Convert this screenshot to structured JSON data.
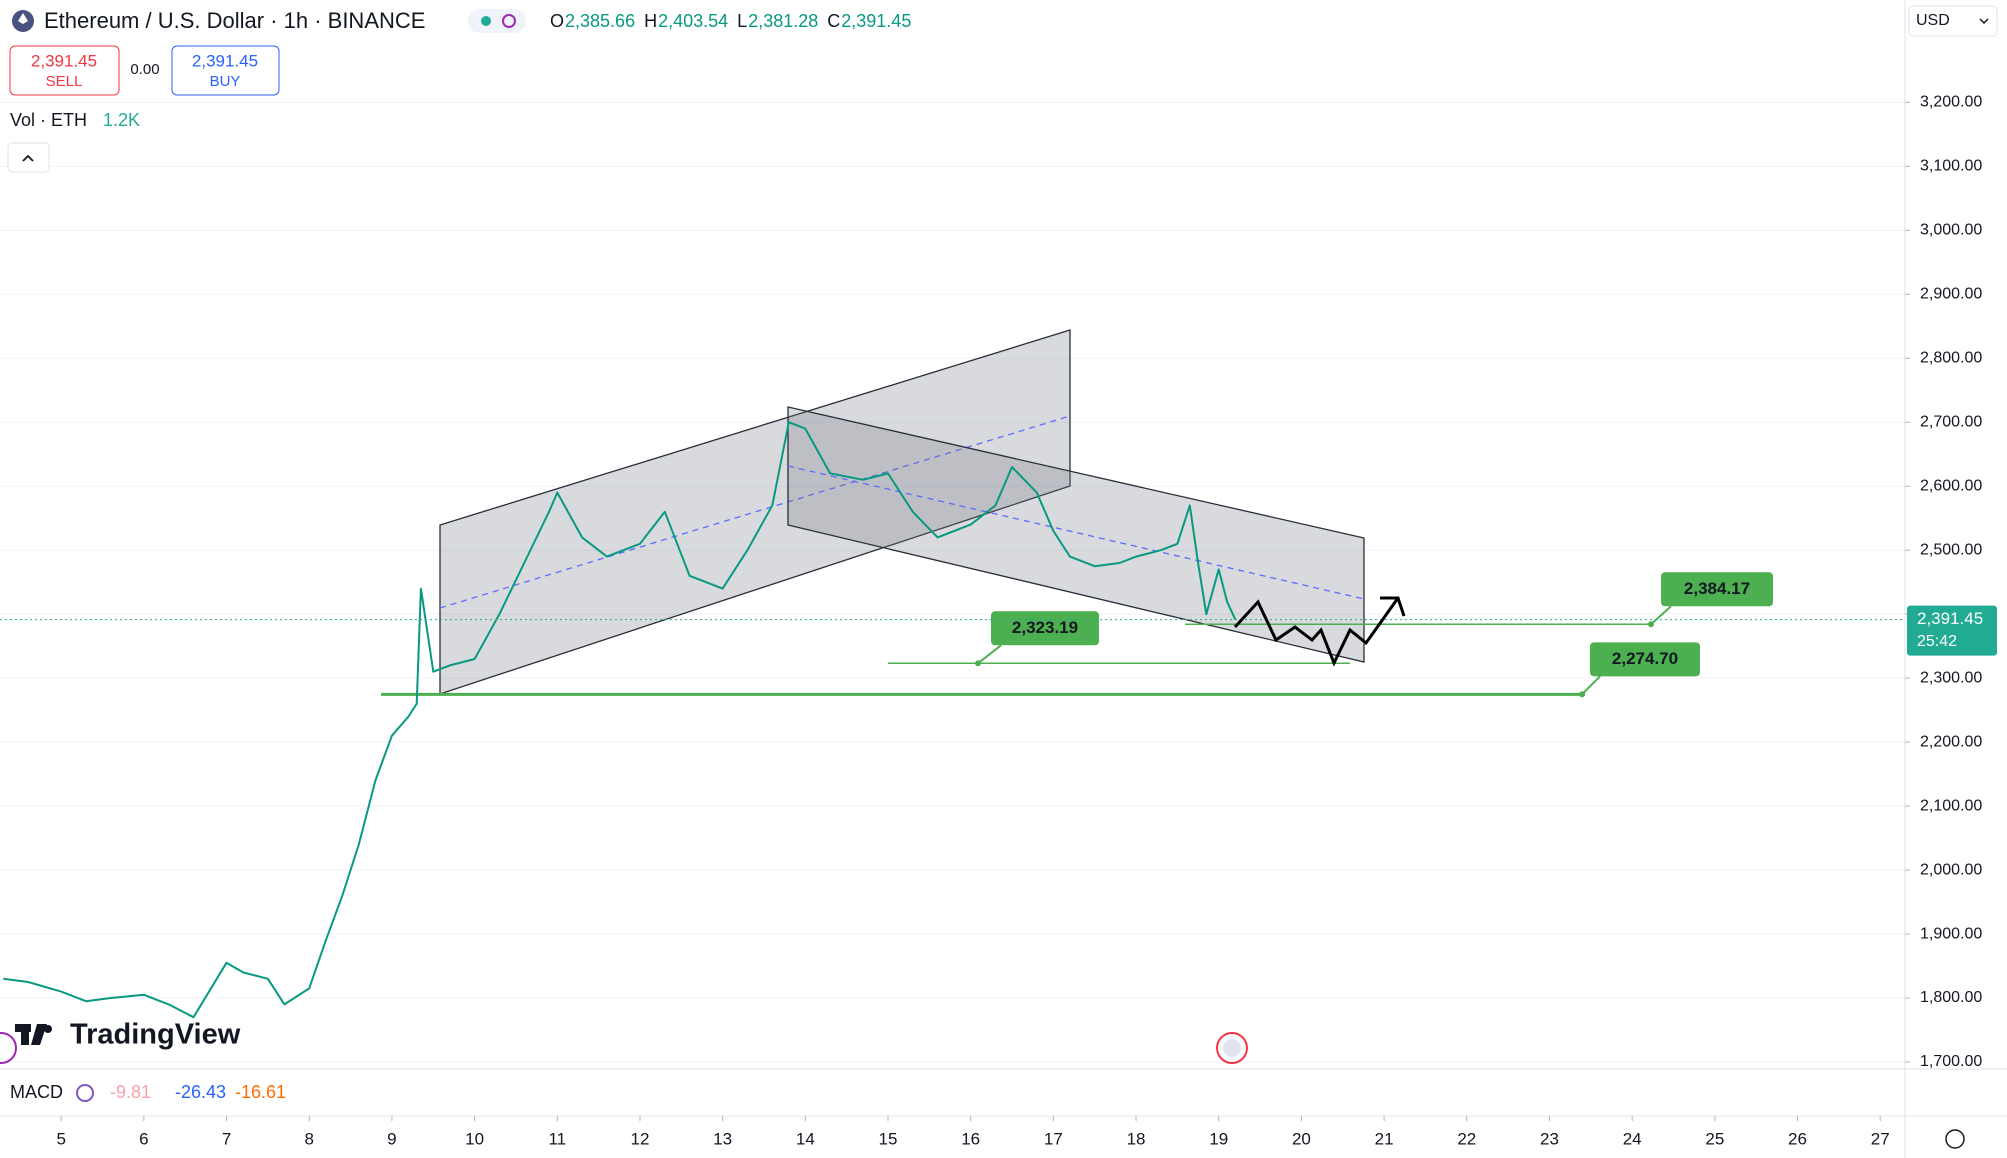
{
  "toolbar": {
    "title": "Ethereum / U.S. Dollar · 1h · BINANCE",
    "ohlc": [
      {
        "key": "O",
        "value": "2,385.66"
      },
      {
        "key": "H",
        "value": "2,403.54"
      },
      {
        "key": "L",
        "value": "2,381.28"
      },
      {
        "key": "C",
        "value": "2,391.45"
      }
    ],
    "sell": {
      "price": "2,391.45",
      "label": "SELL"
    },
    "spread": "0.00",
    "buy": {
      "price": "2,391.45",
      "label": "BUY"
    },
    "volume": {
      "label": "Vol · ETH",
      "value": "1.2K"
    },
    "currency": "USD",
    "macd": {
      "label": "MACD",
      "values": [
        "-9.81",
        "-26.43",
        "-16.61"
      ]
    },
    "logo": "TradingView"
  },
  "chart_data": {
    "type": "line",
    "color": "#089981",
    "x": [
      4.3,
      4.6,
      5.0,
      5.3,
      5.6,
      6.0,
      6.3,
      6.6,
      7.0,
      7.2,
      7.5,
      7.7,
      8.0,
      8.2,
      8.4,
      8.6,
      8.8,
      9.0,
      9.2,
      9.3,
      9.35,
      9.5,
      9.7,
      10.0,
      10.3,
      10.6,
      10.9,
      11.0,
      11.3,
      11.6,
      12.0,
      12.3,
      12.6,
      13.0,
      13.3,
      13.6,
      13.8,
      14.0,
      14.3,
      14.7,
      15.0,
      15.3,
      15.6,
      16.0,
      16.3,
      16.5,
      16.8,
      17.0,
      17.2,
      17.5,
      17.8,
      18.0,
      18.3,
      18.5,
      18.65,
      18.75,
      18.85,
      19.0,
      19.1,
      19.2
    ],
    "values": [
      1830,
      1825,
      1810,
      1795,
      1800,
      1805,
      1790,
      1770,
      1855,
      1840,
      1830,
      1790,
      1815,
      1890,
      1960,
      2040,
      2140,
      2210,
      2240,
      2260,
      2440,
      2310,
      2320,
      2330,
      2400,
      2480,
      2560,
      2590,
      2520,
      2490,
      2510,
      2560,
      2460,
      2440,
      2500,
      2570,
      2700,
      2690,
      2620,
      2610,
      2620,
      2560,
      2520,
      2540,
      2570,
      2630,
      2590,
      2530,
      2490,
      2475,
      2480,
      2490,
      2500,
      2510,
      2570,
      2480,
      2400,
      2470,
      2420,
      2391.45
    ],
    "xlim": [
      4.26,
      27.3
    ],
    "xticks": [
      5,
      6,
      7,
      8,
      9,
      10,
      11,
      12,
      13,
      14,
      15,
      16,
      17,
      18,
      19,
      20,
      21,
      22,
      23,
      24,
      25,
      26,
      27
    ],
    "ylim": [
      1690,
      3360
    ],
    "yticks": [
      {
        "value": 1700,
        "label": "1,700.00"
      },
      {
        "value": 1800,
        "label": "1,800.00"
      },
      {
        "value": 1900,
        "label": "1,900.00"
      },
      {
        "value": 2000,
        "label": "2,000.00"
      },
      {
        "value": 2100,
        "label": "2,100.00"
      },
      {
        "value": 2200,
        "label": "2,200.00"
      },
      {
        "value": 2300,
        "label": "2,300.00"
      },
      {
        "value": 2400,
        "label": "2,400.00"
      },
      {
        "value": 2500,
        "label": "2,500.00"
      },
      {
        "value": 2600,
        "label": "2,600.00"
      },
      {
        "value": 2700,
        "label": "2,700.00"
      },
      {
        "value": 2800,
        "label": "2,800.00"
      },
      {
        "value": 2900,
        "label": "2,900.00"
      },
      {
        "value": 3000,
        "label": "3,000.00"
      },
      {
        "value": 3100,
        "label": "3,100.00"
      },
      {
        "value": 3200,
        "label": "3,200.00"
      }
    ],
    "grid": true,
    "levels": [
      {
        "value": 2323.19,
        "label": "2,323.19"
      },
      {
        "value": 2384.17,
        "label": "2,384.17"
      },
      {
        "value": 2274.7,
        "label": "2,274.70"
      }
    ],
    "price_line": {
      "value": 2391.45,
      "label": "2,391.45",
      "countdown": "25:42"
    }
  }
}
